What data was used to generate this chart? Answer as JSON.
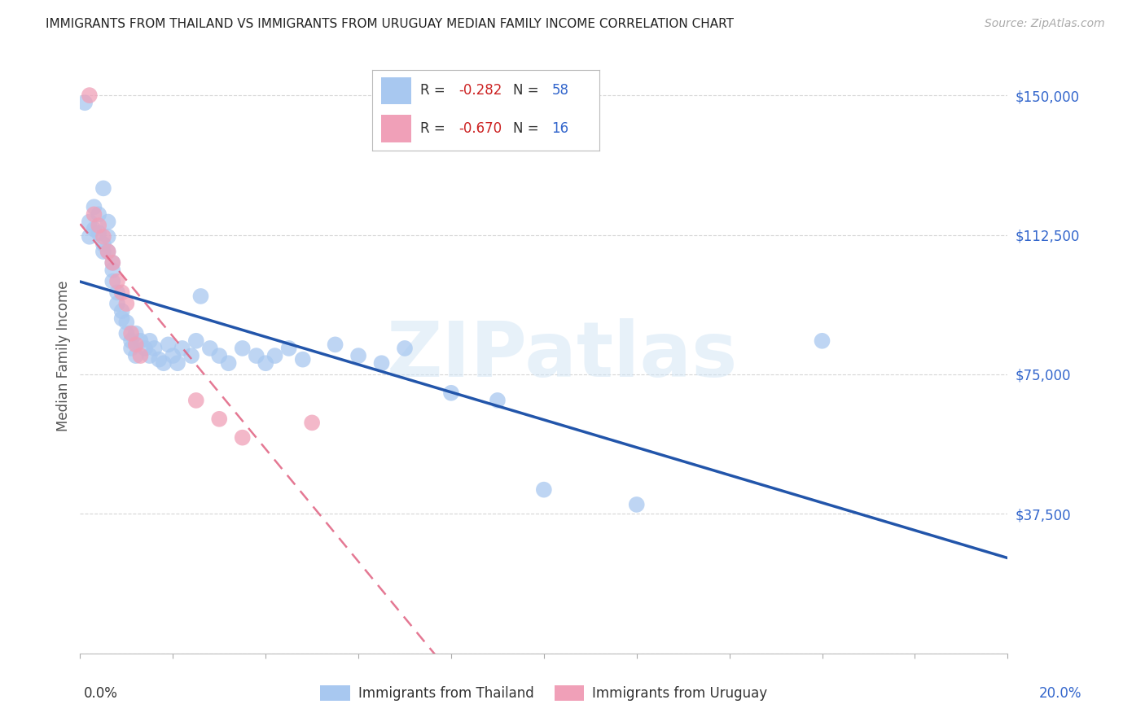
{
  "title": "IMMIGRANTS FROM THAILAND VS IMMIGRANTS FROM URUGUAY MEDIAN FAMILY INCOME CORRELATION CHART",
  "source": "Source: ZipAtlas.com",
  "ylabel": "Median Family Income",
  "y_ticks": [
    0,
    37500,
    75000,
    112500,
    150000
  ],
  "y_tick_labels": [
    "",
    "$37,500",
    "$75,000",
    "$112,500",
    "$150,000"
  ],
  "x_min": 0.0,
  "x_max": 0.2,
  "y_min": 0,
  "y_max": 160000,
  "thailand_color": "#a8c8f0",
  "uruguay_color": "#f0a0b8",
  "thailand_line_color": "#2255aa",
  "uruguay_line_color": "#e06080",
  "R_thailand": -0.282,
  "N_thailand": 58,
  "R_uruguay": -0.67,
  "N_uruguay": 16,
  "thailand_scatter_x": [
    0.001,
    0.002,
    0.002,
    0.003,
    0.003,
    0.004,
    0.004,
    0.005,
    0.005,
    0.005,
    0.006,
    0.006,
    0.006,
    0.007,
    0.007,
    0.007,
    0.008,
    0.008,
    0.009,
    0.009,
    0.01,
    0.01,
    0.011,
    0.011,
    0.012,
    0.012,
    0.013,
    0.014,
    0.015,
    0.015,
    0.016,
    0.017,
    0.018,
    0.019,
    0.02,
    0.021,
    0.022,
    0.024,
    0.025,
    0.026,
    0.028,
    0.03,
    0.032,
    0.035,
    0.038,
    0.04,
    0.042,
    0.045,
    0.048,
    0.055,
    0.06,
    0.065,
    0.07,
    0.08,
    0.09,
    0.1,
    0.12,
    0.16
  ],
  "thailand_scatter_y": [
    148000,
    116000,
    112000,
    120000,
    114000,
    118000,
    113000,
    110000,
    108000,
    125000,
    116000,
    112000,
    108000,
    105000,
    103000,
    100000,
    97000,
    94000,
    92000,
    90000,
    89000,
    86000,
    84000,
    82000,
    80000,
    86000,
    84000,
    82000,
    84000,
    80000,
    82000,
    79000,
    78000,
    83000,
    80000,
    78000,
    82000,
    80000,
    84000,
    96000,
    82000,
    80000,
    78000,
    82000,
    80000,
    78000,
    80000,
    82000,
    79000,
    83000,
    80000,
    78000,
    82000,
    70000,
    68000,
    44000,
    40000,
    84000
  ],
  "uruguay_scatter_x": [
    0.002,
    0.003,
    0.004,
    0.005,
    0.006,
    0.007,
    0.008,
    0.009,
    0.01,
    0.011,
    0.012,
    0.013,
    0.025,
    0.03,
    0.035,
    0.05
  ],
  "uruguay_scatter_y": [
    150000,
    118000,
    115000,
    112000,
    108000,
    105000,
    100000,
    97000,
    94000,
    86000,
    83000,
    80000,
    68000,
    63000,
    58000,
    62000
  ],
  "watermark_text": "ZIPatlas",
  "background_color": "#ffffff",
  "grid_color": "#cccccc"
}
